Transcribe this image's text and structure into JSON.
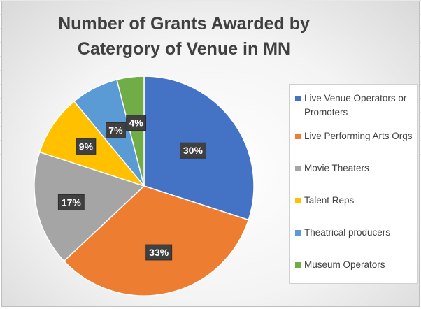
{
  "chart_data": {
    "type": "pie",
    "title": "Number of Grants Awarded by Catergory of Venue in MN",
    "title_lines": [
      "Number of Grants Awarded by",
      "Catergory of Venue in MN"
    ],
    "categories": [
      "Live Venue Operators or Promoters",
      "Live Performing Arts Orgs",
      "Movie Theaters",
      "Talent Reps",
      "Theatrical producers",
      "Museum Operators"
    ],
    "legend_lines": [
      [
        "Live Venue Operators or",
        "Promoters"
      ],
      [
        "Live Performing Arts Orgs"
      ],
      [
        "Movie Theaters"
      ],
      [
        "Talent Reps"
      ],
      [
        "Theatrical producers"
      ],
      [
        "Museum Operators"
      ]
    ],
    "values": [
      30,
      33,
      17,
      9,
      7,
      4
    ],
    "data_labels": [
      "30%",
      "33%",
      "17%",
      "9%",
      "7%",
      "4%"
    ],
    "colors": [
      "#4472C4",
      "#ED7D31",
      "#A5A5A5",
      "#FFC000",
      "#5B9BD5",
      "#70AD47"
    ],
    "start_angle": "12 o'clock",
    "direction": "clockwise",
    "legend_position": "right"
  }
}
